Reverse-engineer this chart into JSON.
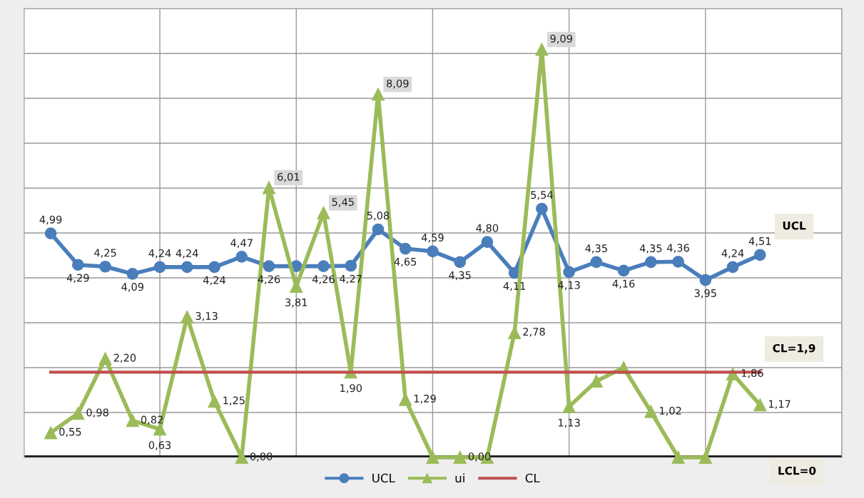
{
  "chart_data": {
    "type": "line",
    "categories": [
      null,
      null,
      null,
      null,
      null,
      null,
      null,
      null,
      null,
      null,
      null,
      null,
      null,
      null,
      null,
      null,
      null,
      null,
      null,
      null,
      null,
      null,
      null,
      null,
      null,
      null,
      null
    ],
    "series": [
      {
        "name": "UCL",
        "color": "#4a7ebb",
        "marker": "circle",
        "values": [
          4.99,
          4.29,
          4.25,
          4.09,
          4.24,
          4.24,
          4.24,
          4.47,
          4.26,
          4.26,
          4.26,
          4.27,
          5.08,
          4.65,
          4.59,
          4.35,
          4.8,
          4.11,
          5.54,
          4.13,
          4.35,
          4.16,
          4.35,
          4.36,
          3.95,
          4.24,
          4.51
        ],
        "value_labels": [
          "4,99",
          "4,29",
          "4,25",
          "4,09",
          "4,24",
          "4,24",
          "4,24",
          "4,47",
          "4,26",
          null,
          "4,26",
          "4,27",
          "5,08",
          "4,65",
          "4,59",
          "4,35",
          "4,80",
          "4,11",
          "5,54",
          "4,13",
          "4,35",
          "4,16",
          "4,35",
          "4,36",
          "3,95",
          "4,24",
          "4,51"
        ]
      },
      {
        "name": "ui",
        "color": "#9bbb59",
        "marker": "triangle",
        "values": [
          0.55,
          0.98,
          2.2,
          0.82,
          0.63,
          3.13,
          1.25,
          0.0,
          6.01,
          3.81,
          5.45,
          1.9,
          8.09,
          1.29,
          0,
          0.0,
          0,
          2.78,
          9.09,
          1.13,
          1.7,
          2.0,
          1.02,
          0,
          0,
          1.86,
          1.17
        ],
        "value_labels": [
          "0,55",
          "0,98",
          "2,20",
          "0,82",
          "0,63",
          "3,13",
          "1,25",
          "0,00",
          "6,01",
          "3,81",
          "5,45",
          "1,90",
          "8,09",
          "1,29",
          null,
          "0,00",
          null,
          "2,78",
          "9,09",
          "1,13",
          null,
          null,
          "1,02",
          null,
          null,
          "1,86",
          "1,17"
        ]
      },
      {
        "name": "CL",
        "color": "#c0504d",
        "marker": "none",
        "values": [
          1.9,
          1.9,
          1.9,
          1.9,
          1.9,
          1.9,
          1.9,
          1.9,
          1.9,
          1.9,
          1.9,
          1.9,
          1.9,
          1.9,
          1.9,
          1.9,
          1.9,
          1.9,
          1.9,
          1.9,
          1.9,
          1.9,
          1.9,
          1.9,
          1.9,
          1.9,
          1.9
        ]
      }
    ],
    "ylim": [
      0,
      10
    ],
    "yticks": [
      0,
      1,
      2,
      3,
      4,
      5,
      6,
      7,
      8,
      9,
      10
    ],
    "tick_labels": false,
    "grid": true,
    "legend": "bottom",
    "ref_lines": [
      {
        "axis": "y",
        "value": 0,
        "label": "LCL=0",
        "color": "#000000"
      }
    ],
    "annotations": [
      "UCL",
      "CL=1,9"
    ]
  }
}
